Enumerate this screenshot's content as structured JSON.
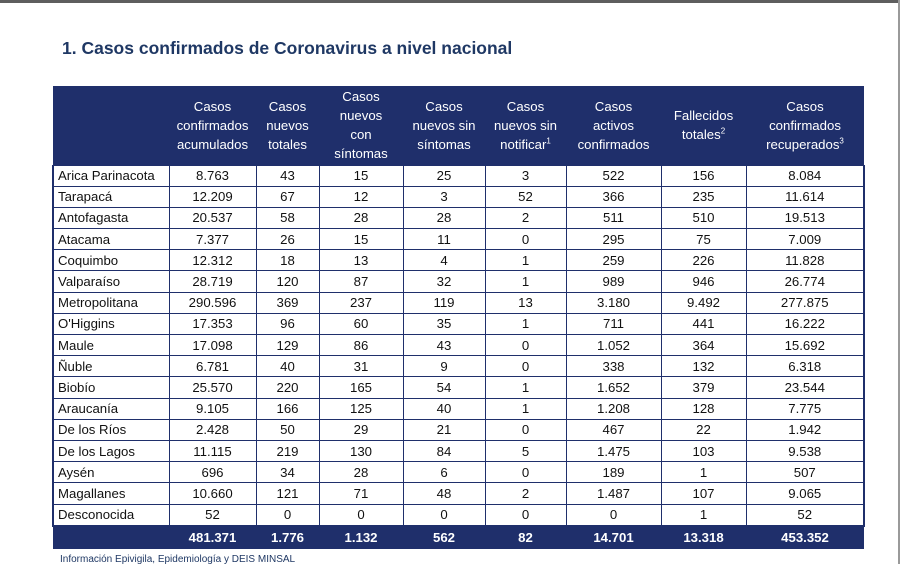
{
  "title": "1. Casos confirmados de Coronavirus a nivel nacional",
  "headers": [
    {
      "text": "",
      "sup": ""
    },
    {
      "text": "Casos\nconfirmados\nacumulados",
      "sup": ""
    },
    {
      "text": "Casos\nnuevos\ntotales",
      "sup": ""
    },
    {
      "text": "Casos\nnuevos\ncon\nsíntomas",
      "sup": ""
    },
    {
      "text": "Casos\nnuevos sin\nsíntomas",
      "sup": ""
    },
    {
      "text": "Casos\nnuevos sin\nnotificar",
      "sup": "1"
    },
    {
      "text": "Casos\nactivos\nconfirmados",
      "sup": ""
    },
    {
      "text": "Fallecidos\ntotales",
      "sup": "2"
    },
    {
      "text": "Casos\nconfirmados\nrecuperados",
      "sup": "3"
    }
  ],
  "rows": [
    [
      "Arica Parinacota",
      "8.763",
      "43",
      "15",
      "25",
      "3",
      "522",
      "156",
      "8.084"
    ],
    [
      "Tarapacá",
      "12.209",
      "67",
      "12",
      "3",
      "52",
      "366",
      "235",
      "11.614"
    ],
    [
      "Antofagasta",
      "20.537",
      "58",
      "28",
      "28",
      "2",
      "511",
      "510",
      "19.513"
    ],
    [
      "Atacama",
      "7.377",
      "26",
      "15",
      "11",
      "0",
      "295",
      "75",
      "7.009"
    ],
    [
      "Coquimbo",
      "12.312",
      "18",
      "13",
      "4",
      "1",
      "259",
      "226",
      "11.828"
    ],
    [
      "Valparaíso",
      "28.719",
      "120",
      "87",
      "32",
      "1",
      "989",
      "946",
      "26.774"
    ],
    [
      "Metropolitana",
      "290.596",
      "369",
      "237",
      "119",
      "13",
      "3.180",
      "9.492",
      "277.875"
    ],
    [
      "O'Higgins",
      "17.353",
      "96",
      "60",
      "35",
      "1",
      "711",
      "441",
      "16.222"
    ],
    [
      "Maule",
      "17.098",
      "129",
      "86",
      "43",
      "0",
      "1.052",
      "364",
      "15.692"
    ],
    [
      "Ñuble",
      "6.781",
      "40",
      "31",
      "9",
      "0",
      "338",
      "132",
      "6.318"
    ],
    [
      "Biobío",
      "25.570",
      "220",
      "165",
      "54",
      "1",
      "1.652",
      "379",
      "23.544"
    ],
    [
      "Araucanía",
      "9.105",
      "166",
      "125",
      "40",
      "1",
      "1.208",
      "128",
      "7.775"
    ],
    [
      "De los Ríos",
      "2.428",
      "50",
      "29",
      "21",
      "0",
      "467",
      "22",
      "1.942"
    ],
    [
      "De los Lagos",
      "11.115",
      "219",
      "130",
      "84",
      "5",
      "1.475",
      "103",
      "9.538"
    ],
    [
      "Aysén",
      "696",
      "34",
      "28",
      "6",
      "0",
      "189",
      "1",
      "507"
    ],
    [
      "Magallanes",
      "10.660",
      "121",
      "71",
      "48",
      "2",
      "1.487",
      "107",
      "9.065"
    ],
    [
      "Desconocida",
      "52",
      "0",
      "0",
      "0",
      "0",
      "0",
      "1",
      "52"
    ]
  ],
  "totals": [
    "",
    "481.371",
    "1.776",
    "1.132",
    "562",
    "82",
    "14.701",
    "13.318",
    "453.352"
  ],
  "footnote": "Información Epivigila, Epidemiología y DEIS MINSAL",
  "colors": {
    "header_bg": "#1f2f6b",
    "title": "#1f3864"
  }
}
